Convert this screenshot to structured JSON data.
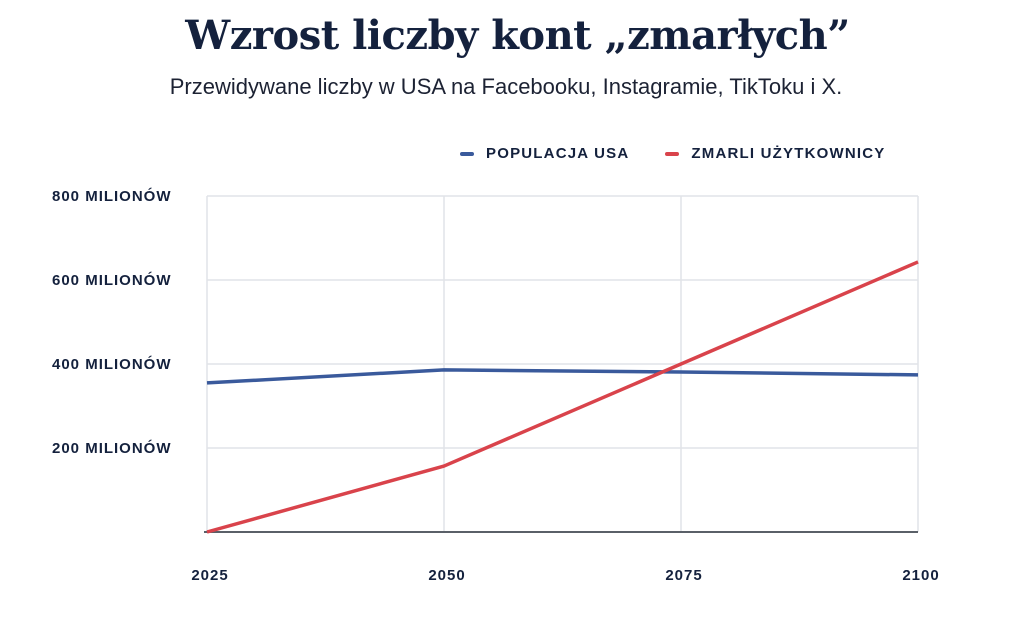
{
  "chart_data": {
    "type": "line",
    "title": "Wzrost liczby kont „zmarłych”",
    "subtitle": "Przewidywane liczby w USA na Facebooku, Instagramie, TikToku i X.",
    "x": [
      2025,
      2050,
      2075,
      2100
    ],
    "x_tick_labels": [
      "2025",
      "2050",
      "2075",
      "2100"
    ],
    "y_ticks": [
      200,
      400,
      600,
      800
    ],
    "y_tick_labels": [
      "200 MILIONÓW",
      "400 MILIONÓW",
      "600 MILIONÓW",
      "800 MILIONÓW"
    ],
    "ylim": [
      0,
      800
    ],
    "xlim": [
      2025,
      2100
    ],
    "grid": true,
    "legend_position": "top-right",
    "series": [
      {
        "name": "POPULACJA USA",
        "color": "#3a5a9c",
        "values": [
          355,
          386,
          381,
          374
        ]
      },
      {
        "name": "ZMARLI UŻYTKOWNICY",
        "color": "#d9434b",
        "values": [
          0,
          157,
          400,
          643
        ]
      }
    ]
  }
}
